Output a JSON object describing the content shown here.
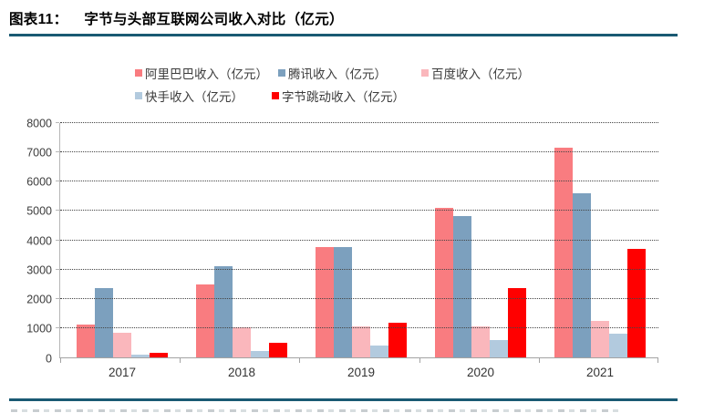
{
  "header": {
    "figure_label": "图表11：",
    "title": "字节与头部互联网公司收入对比（亿元）"
  },
  "colors": {
    "accent_line": "#1A5A73",
    "grid": "#454545",
    "axis": "#ACACAC",
    "text": "#3C3C3C"
  },
  "y_axis": {
    "tick_labels": [
      "0",
      "1000",
      "2000",
      "3000",
      "4000",
      "5000",
      "6000",
      "7000",
      "8000"
    ]
  },
  "chart_data": {
    "type": "bar",
    "title": "字节与头部互联网公司收入对比（亿元）",
    "categories": [
      "2017",
      "2018",
      "2019",
      "2020",
      "2021"
    ],
    "series": [
      {
        "name": "阿里巴巴收入（亿元）",
        "color": "#F97C80",
        "values": [
          1120,
          2503,
          3768,
          5097,
          7173
        ]
      },
      {
        "name": "腾讯收入（亿元）",
        "color": "#7CA0BE",
        "values": [
          2378,
          3127,
          3773,
          4821,
          5601
        ]
      },
      {
        "name": "百度收入（亿元）",
        "color": "#FAB7BC",
        "values": [
          848,
          1023,
          1074,
          1071,
          1245
        ]
      },
      {
        "name": "快手收入（亿元）",
        "color": "#B2CADE",
        "values": [
          83,
          203,
          391,
          588,
          811
        ]
      },
      {
        "name": "字节跳动收入（亿元）",
        "color": "#FF0000",
        "values": [
          150,
          500,
          1180,
          2366,
          3700
        ]
      }
    ],
    "ylim": [
      0,
      8000
    ],
    "ytick_interval": 1000,
    "xlabel": "",
    "ylabel": "",
    "grid": "dotted-horizontal",
    "legend_position": "top",
    "legend_rows": [
      [
        0,
        1,
        2
      ],
      [
        3,
        4
      ]
    ]
  }
}
